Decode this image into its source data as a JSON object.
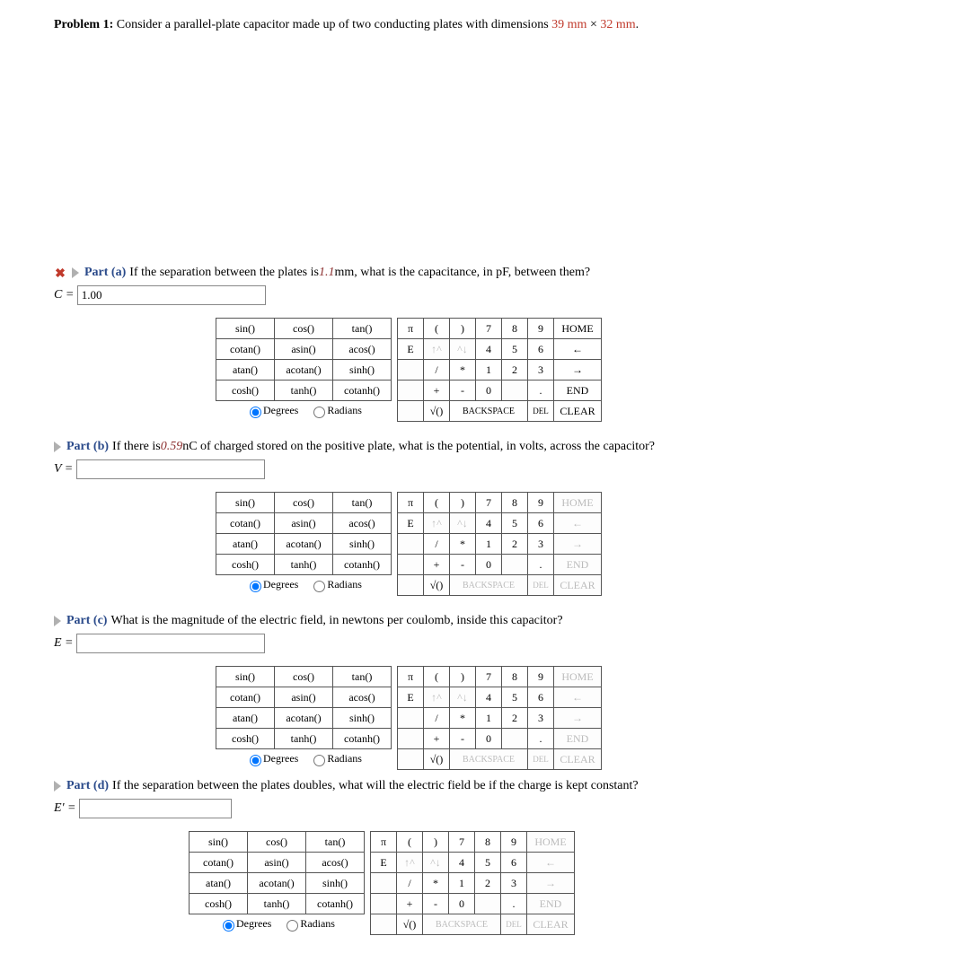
{
  "problem": {
    "number_label": "Problem 1:",
    "text_before": "Consider a parallel-plate capacitor made up of two conducting plates with dimensions ",
    "dim1": "39 mm",
    "times": " × ",
    "dim2": "32 mm",
    "text_after": "."
  },
  "parts": {
    "a": {
      "label": "Part (a)",
      "text_before": "If the separation between the plates is ",
      "value": "1.1",
      "text_after": " mm, what is the capacitance, in pF, between them?",
      "var": "C =",
      "input_value": "1.00"
    },
    "b": {
      "label": "Part (b)",
      "text_before": "If there is ",
      "value": "0.59",
      "text_after": " nC of charged stored on the positive plate, what is the potential, in volts, across the capacitor?",
      "var": "V =",
      "input_value": ""
    },
    "c": {
      "label": "Part (c)",
      "text": "What is the magnitude of the electric field, in newtons per coulomb, inside this capacitor?",
      "var": "E =",
      "input_value": ""
    },
    "d": {
      "label": "Part (d)",
      "text": "If the separation between the plates doubles, what will the electric field be if the charge is kept constant?",
      "var": "E' =",
      "input_value": ""
    }
  },
  "keypad": {
    "funcs": {
      "r1": [
        "sin()",
        "cos()",
        "tan()"
      ],
      "r2": [
        "cotan()",
        "asin()",
        "acos()"
      ],
      "r3": [
        "atan()",
        "acotan()",
        "sinh()"
      ],
      "r4": [
        "cosh()",
        "tanh()",
        "cotanh()"
      ],
      "deg": "Degrees",
      "rad": "Radians"
    },
    "nums": {
      "r1": [
        "π",
        "(",
        ")",
        "7",
        "8",
        "9",
        "HOME"
      ],
      "r2": [
        "E",
        "↑^",
        "^↓",
        "4",
        "5",
        "6",
        "←"
      ],
      "r3": [
        "",
        "/",
        "*",
        "1",
        "2",
        "3",
        "→"
      ],
      "r4": [
        "",
        "+",
        "-",
        "0",
        "",
        ".",
        "END"
      ],
      "r5": [
        "",
        "√()",
        "BACKSPACE",
        "DEL",
        "CLEAR"
      ]
    }
  }
}
